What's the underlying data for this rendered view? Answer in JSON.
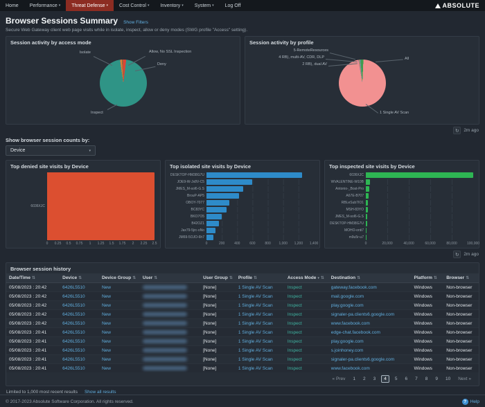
{
  "nav": {
    "brand": "ABSOLUTE",
    "items": [
      {
        "label": "Home",
        "caret": false,
        "active": false
      },
      {
        "label": "Performance",
        "caret": true,
        "active": false
      },
      {
        "label": "Threat Defense",
        "caret": true,
        "active": true
      },
      {
        "label": "Cost Control",
        "caret": true,
        "active": false
      },
      {
        "label": "Inventory",
        "caret": true,
        "active": false
      },
      {
        "label": "System",
        "caret": true,
        "active": false
      },
      {
        "label": "Log Off",
        "caret": false,
        "active": false
      }
    ]
  },
  "header": {
    "title": "Browser Sessions Summary",
    "show_filters_link": "Show Filters",
    "subtitle": "Secure Web Gateway client web page visits while in isolate, inspect, allow or deny modes (SWG profile \"Access\" setting)."
  },
  "refresh": {
    "charts_age": "2m ago",
    "bars_age": "2m ago"
  },
  "counts_by": {
    "label": "Show browser session counts by:",
    "selected": "Device"
  },
  "chart_data": [
    {
      "type": "pie",
      "title": "Session activity by access mode",
      "slices": [
        {
          "label": "Isolate",
          "value": 1.2,
          "color": "#e07b39"
        },
        {
          "label": "Allow, No SSL Inspection",
          "value": 0.8,
          "color": "#8a6d3b"
        },
        {
          "label": "Deny",
          "value": 2.2,
          "color": "#dc4436"
        },
        {
          "label": "Inspect",
          "value": 95.8,
          "color": "#2f9486"
        }
      ]
    },
    {
      "type": "pie",
      "title": "Session activity by profile",
      "slices": [
        {
          "label": "5-RemoteResources",
          "value": 0.5,
          "color": "#9a6fb0"
        },
        {
          "label": "4 RB), multi-AV, CDR, DLP",
          "value": 0.5,
          "color": "#c9a227"
        },
        {
          "label": "2 RB), dual AV",
          "value": 0.5,
          "color": "#4a90c4"
        },
        {
          "label": "All",
          "value": 2.0,
          "color": "#3f9d4e"
        },
        {
          "label": "1 Single AV Scan",
          "value": 96.5,
          "color": "#f29191"
        }
      ]
    },
    {
      "type": "bar",
      "title": "Top denied site visits by Device",
      "color": "#dc4f30",
      "categories": [
        "6036XJC"
      ],
      "values": [
        2.5
      ],
      "xlim": [
        0,
        2.5
      ],
      "ticks": [
        "0",
        "0.25",
        "0.5",
        "0.75",
        "1",
        "1.25",
        "1.5",
        "1.75",
        "2",
        "2.25",
        "2.5"
      ]
    },
    {
      "type": "bar",
      "title": "Top isolated site visits by Device",
      "color": "#2e8bc9",
      "categories": [
        "DESKTOP-HM38G7U",
        "JOE9-W-Jx8V-C5",
        "JMES_M-sol6-G.S",
        "BrouP-AP5",
        "OBOY-7077",
        "BC83YC",
        "BKO7O5",
        "B42OZ1",
        "Jax79-5jrc-oNo",
        "JM69-5OJO-6h7"
      ],
      "values": [
        1250,
        600,
        480,
        420,
        300,
        260,
        200,
        160,
        120,
        90
      ],
      "xlim": [
        0,
        1400
      ],
      "ticks": [
        "0",
        "200",
        "400",
        "600",
        "800",
        "1,000",
        "1,200",
        "1,400"
      ]
    },
    {
      "type": "bar",
      "title": "Top inspected site visits by Device",
      "color": "#2eb553",
      "categories": [
        "6036XJC",
        "WVALENTINE-W10B",
        "Antonio-_Bost-Pro",
        "A67E-B707",
        "RBLeSub7IO1",
        "MSH-83YO",
        "JMES_M-sol6-G.S",
        "DESKTOP-HM38G7U",
        "MOHO-onti7",
        "m9u5r-u7"
      ],
      "values": [
        105000,
        4200,
        3400,
        2800,
        2300,
        1900,
        1600,
        1300,
        1000,
        800
      ],
      "xlim": [
        0,
        105000
      ],
      "ticks": [
        "0",
        "20,000",
        "40,000",
        "60,000",
        "80,000",
        "100,000"
      ]
    }
  ],
  "history": {
    "title": "Browser session history",
    "columns": [
      {
        "label": "Date/Time",
        "key": "datetime",
        "filter": false
      },
      {
        "label": "Device",
        "key": "device",
        "filter": false
      },
      {
        "label": "Device Group",
        "key": "device_group",
        "filter": false
      },
      {
        "label": "User",
        "key": "user",
        "filter": false
      },
      {
        "label": "User Group",
        "key": "user_group",
        "filter": false
      },
      {
        "label": "Profile",
        "key": "profile",
        "filter": false
      },
      {
        "label": "Access Mode",
        "key": "access_mode",
        "filter": true
      },
      {
        "label": "Destination",
        "key": "destination",
        "filter": false
      },
      {
        "label": "Platform",
        "key": "platform",
        "filter": false
      },
      {
        "label": "Browser",
        "key": "browser",
        "filter": false
      }
    ],
    "rows": [
      {
        "datetime": "05/08/2023 : 20:42",
        "device": "6426L5510",
        "device_group": "New",
        "user": "",
        "user_group": "[None]",
        "profile": "1 Single AV Scan",
        "access_mode": "Inspect",
        "destination": "gateway.facebook.com",
        "platform": "Windows",
        "browser": "Non-browser"
      },
      {
        "datetime": "05/08/2023 : 20:42",
        "device": "6426L5510",
        "device_group": "New",
        "user": "",
        "user_group": "[None]",
        "profile": "1 Single AV Scan",
        "access_mode": "Inspect",
        "destination": "mail.google.com",
        "platform": "Windows",
        "browser": "Non-browser"
      },
      {
        "datetime": "05/08/2023 : 20:42",
        "device": "6426L5510",
        "device_group": "New",
        "user": "",
        "user_group": "[None]",
        "profile": "1 Single AV Scan",
        "access_mode": "Inspect",
        "destination": "play.google.com",
        "platform": "Windows",
        "browser": "Non-browser"
      },
      {
        "datetime": "05/08/2023 : 20:42",
        "device": "6426L5510",
        "device_group": "New",
        "user": "",
        "user_group": "[None]",
        "profile": "1 Single AV Scan",
        "access_mode": "Inspect",
        "destination": "signaler-pa.clients6.google.com",
        "platform": "Windows",
        "browser": "Non-browser"
      },
      {
        "datetime": "05/08/2023 : 20:42",
        "device": "6426L5510",
        "device_group": "New",
        "user": "",
        "user_group": "[None]",
        "profile": "1 Single AV Scan",
        "access_mode": "Inspect",
        "destination": "www.facebook.com",
        "platform": "Windows",
        "browser": "Non-browser"
      },
      {
        "datetime": "05/08/2023 : 20:41",
        "device": "6426L5510",
        "device_group": "New",
        "user": "",
        "user_group": "[None]",
        "profile": "1 Single AV Scan",
        "access_mode": "Inspect",
        "destination": "edge-chat.facebook.com",
        "platform": "Windows",
        "browser": "Non-browser"
      },
      {
        "datetime": "05/08/2023 : 20:41",
        "device": "6426L5510",
        "device_group": "New",
        "user": "",
        "user_group": "[None]",
        "profile": "1 Single AV Scan",
        "access_mode": "Inspect",
        "destination": "play.google.com",
        "platform": "Windows",
        "browser": "Non-browser"
      },
      {
        "datetime": "05/08/2023 : 20:41",
        "device": "6426L5510",
        "device_group": "New",
        "user": "",
        "user_group": "[None]",
        "profile": "1 Single AV Scan",
        "access_mode": "Inspect",
        "destination": "s.joinhoney.com",
        "platform": "Windows",
        "browser": "Non-browser"
      },
      {
        "datetime": "05/08/2023 : 20:41",
        "device": "6426L5510",
        "device_group": "New",
        "user": "",
        "user_group": "[None]",
        "profile": "1 Single AV Scan",
        "access_mode": "Inspect",
        "destination": "signaler-pa.clients6.google.com",
        "platform": "Windows",
        "browser": "Non-browser"
      },
      {
        "datetime": "05/08/2023 : 20:41",
        "device": "6426L5510",
        "device_group": "New",
        "user": "",
        "user_group": "[None]",
        "profile": "1 Single AV Scan",
        "access_mode": "Inspect",
        "destination": "www.facebook.com",
        "platform": "Windows",
        "browser": "Non-browser"
      }
    ],
    "pagination": {
      "prev": "« Prev",
      "next": "Next »",
      "pages": [
        "1",
        "2",
        "3",
        "4",
        "5",
        "6",
        "7",
        "8",
        "9",
        "10"
      ],
      "current": "4"
    },
    "limited_note": "Limited to 1,000 most recent results",
    "show_all": "Show all results"
  },
  "footer": {
    "copyright": "© 2017-2023 Absolute Software Corporation. All rights reserved.",
    "help": "Help"
  }
}
